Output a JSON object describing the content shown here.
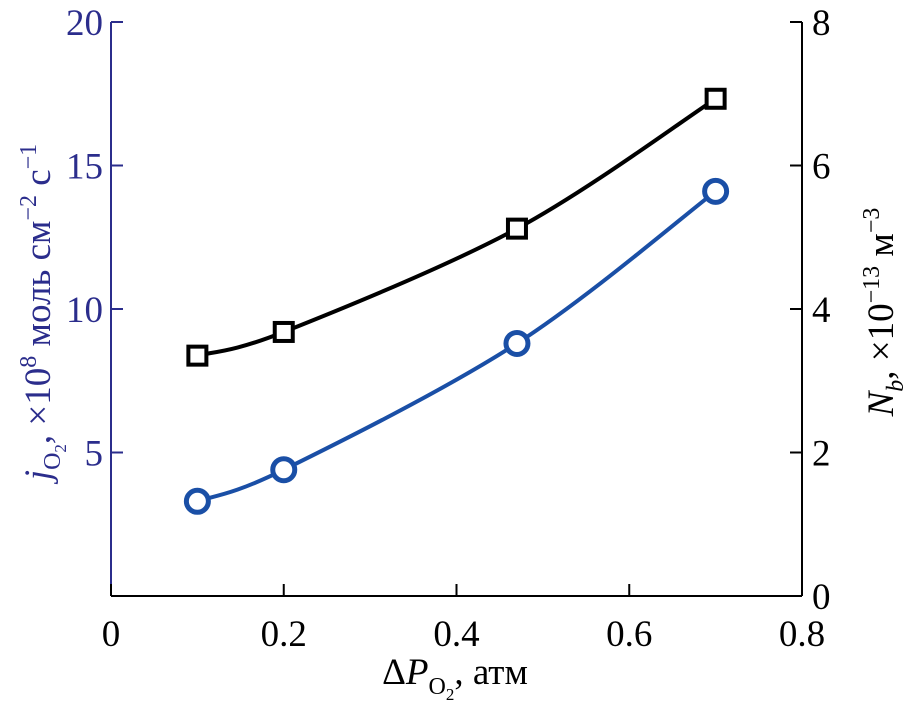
{
  "colors": {
    "left": "#2b2d8c",
    "blue_series": "#1a4fa6",
    "black": "#000000"
  },
  "chart_data": {
    "type": "line",
    "x_axis": {
      "label_pre": "Δ",
      "label_var": "P",
      "label_sub": "O",
      "label_sub_sub": "2",
      "label_post": ", атм",
      "range": [
        0,
        0.8
      ],
      "ticks": [
        0,
        0.2,
        0.4,
        0.6,
        0.8
      ],
      "tick_labels": [
        "0",
        "0.2",
        "0.4",
        "0.6",
        "0.8"
      ]
    },
    "y_left": {
      "label_var": "j",
      "label_sub": "O",
      "label_sub_sub": "2",
      "label_mid": ", ×10",
      "label_exp": "8",
      "label_unit": " моль см",
      "label_exp2": "−2",
      "label_unit2": " с",
      "label_exp3": "−1",
      "range": [
        0,
        20
      ],
      "ticks": [
        5,
        10,
        15,
        20
      ],
      "tick_labels": [
        "5",
        "10",
        "15",
        "20"
      ]
    },
    "y_right": {
      "label_var": "N",
      "label_sub": "b",
      "label_mid": ", ×10",
      "label_exp": "−13",
      "label_unit": " м",
      "label_exp2": "−3",
      "range": [
        0,
        8
      ],
      "ticks": [
        0,
        2,
        4,
        6,
        8
      ],
      "tick_labels": [
        "0",
        "2",
        "4",
        "6",
        "8"
      ]
    },
    "series": [
      {
        "axis": "left",
        "marker": "circle",
        "x": [
          0.1,
          0.2,
          0.47,
          0.7
        ],
        "y": [
          3.3,
          4.4,
          8.8,
          14.1
        ]
      },
      {
        "axis": "right",
        "marker": "square",
        "x": [
          0.1,
          0.2,
          0.47,
          0.7
        ],
        "y": [
          3.35,
          3.68,
          5.12,
          6.93
        ]
      }
    ]
  }
}
